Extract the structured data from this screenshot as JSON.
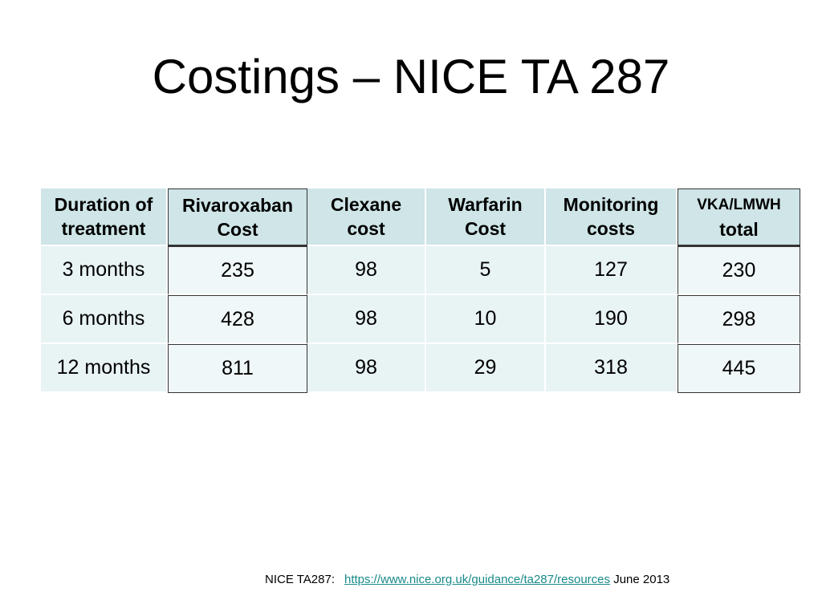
{
  "slide": {
    "title": "Costings – NICE TA 287"
  },
  "table": {
    "headers": [
      [
        "Duration of",
        "treatment"
      ],
      [
        "Rivaroxaban",
        "Cost"
      ],
      [
        "Clexane",
        "cost"
      ],
      [
        "Warfarin",
        "Cost"
      ],
      [
        "Monitoring",
        "costs"
      ],
      [
        "VKA/LMWH",
        "total"
      ]
    ],
    "rows": [
      [
        "3 months",
        "235",
        "98",
        "5",
        "127",
        "230"
      ],
      [
        "6 months",
        "428",
        "98",
        "10",
        "190",
        "298"
      ],
      [
        "12 months",
        "811",
        "98",
        "29",
        "318",
        "445"
      ]
    ]
  },
  "footer": {
    "label": "NICE  TA287:",
    "link": "https://www.nice.org.uk/guidance/ta287/resources",
    "date": "June 2013"
  },
  "colors": {
    "header_fill": "#cfe5e7",
    "cell_fill": "#e8f3f4",
    "link": "#1a8a8a"
  }
}
